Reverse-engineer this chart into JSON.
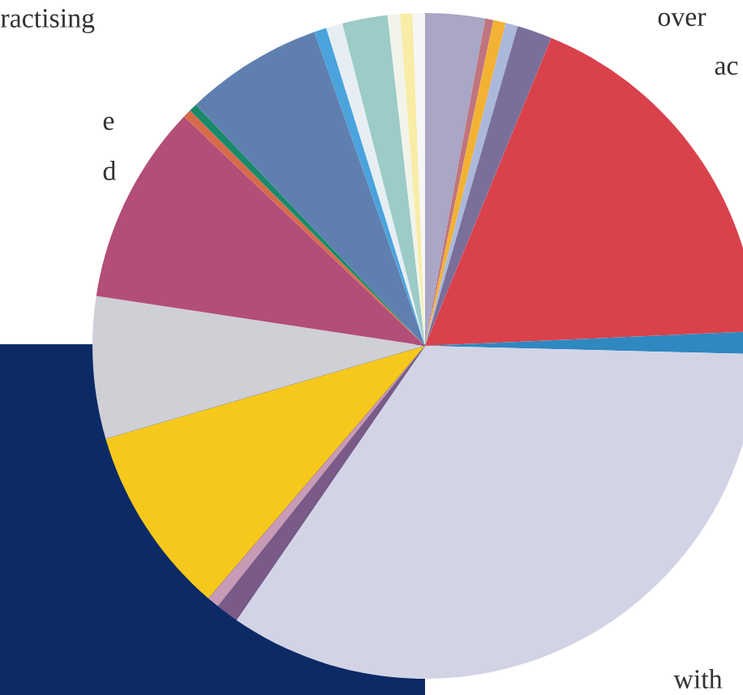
{
  "chart_data": {
    "type": "pie",
    "categories": [
      null,
      null,
      null,
      null,
      null,
      null,
      null,
      null,
      null,
      null,
      null,
      null,
      null,
      null,
      null,
      null,
      null,
      null,
      null,
      null,
      null,
      null
    ],
    "values": [
      2.9,
      0.4,
      0.6,
      0.6,
      1.7,
      18.1,
      1.1,
      34.2,
      1.1,
      0.6,
      9.2,
      6.9,
      9.7,
      0.4,
      0.4,
      6.7,
      0.6,
      0.8,
      2.2,
      0.6,
      0.6,
      0.6
    ],
    "colors": [
      "#a9a6c6",
      "#c0747e",
      "#f2b233",
      "#aab8dc",
      "#7a6f9a",
      "#d9414b",
      "#2f88c0",
      "#d3d3e6",
      "#7a5a86",
      "#c79ab5",
      "#f7c81c",
      "#cfcfd6",
      "#b24e77",
      "#d86a4a",
      "#1a8a6a",
      "#5f7fb0",
      "#4aa3dc",
      "#e6eef4",
      "#9ccbc8",
      "#f2f4ea",
      "#f8eca6",
      "#f6f6f6"
    ],
    "annotations": [
      "ractising",
      "e",
      "d",
      "over",
      "ac",
      "with"
    ]
  }
}
